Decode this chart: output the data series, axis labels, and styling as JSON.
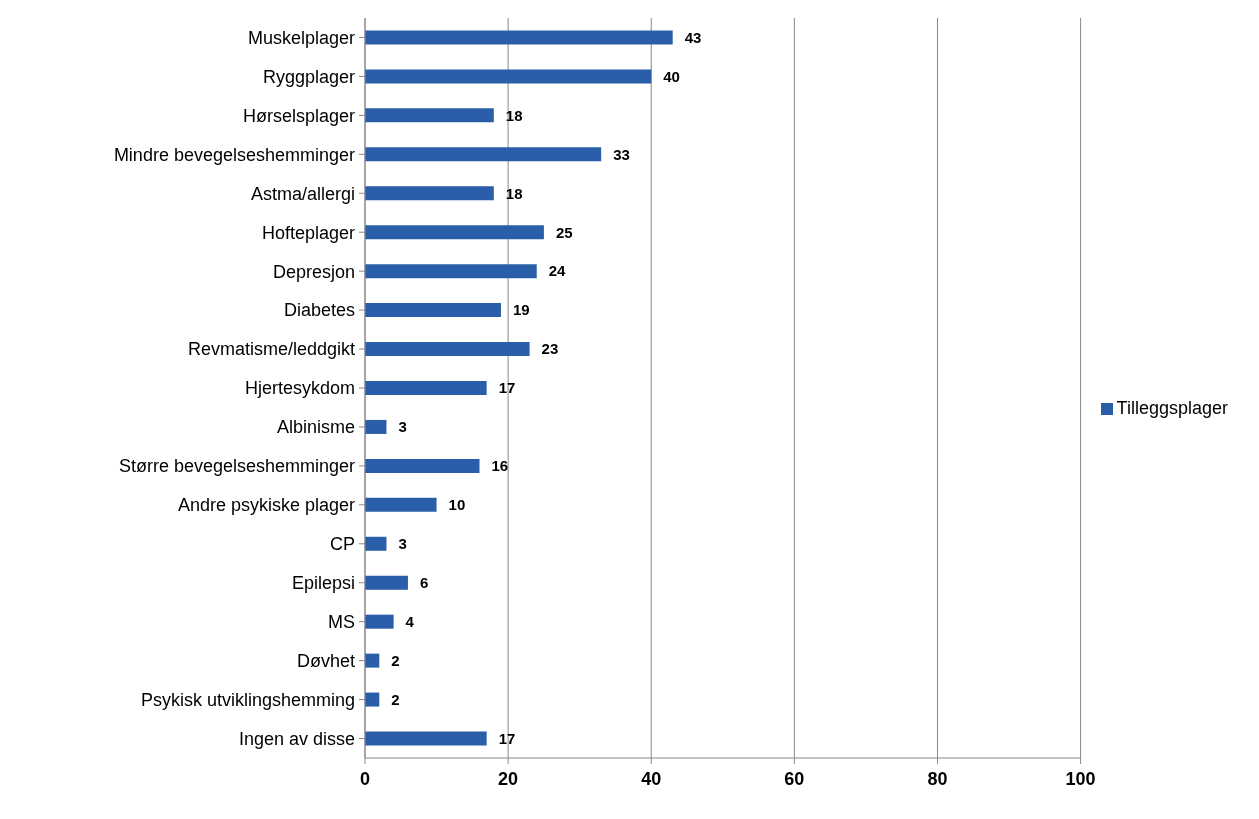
{
  "chart_data": {
    "type": "bar",
    "orientation": "horizontal",
    "categories": [
      "Muskelplager",
      "Ryggplager",
      "Hørselsplager",
      "Mindre bevegelseshemminger",
      "Astma/allergi",
      "Hofteplager",
      "Depresjon",
      "Diabetes",
      "Revmatisme/leddgikt",
      "Hjertesykdom",
      "Albinisme",
      "Større bevegelseshemminger",
      "Andre psykiske plager",
      "CP",
      "Epilepsi",
      "MS",
      "Døvhet",
      "Psykisk utviklingshemming",
      "Ingen av disse"
    ],
    "series": [
      {
        "name": "Tilleggsplager",
        "color": "#2b5ea8",
        "values": [
          43,
          40,
          18,
          33,
          18,
          25,
          24,
          19,
          23,
          17,
          3,
          16,
          10,
          3,
          6,
          4,
          2,
          2,
          17
        ]
      }
    ],
    "xlim": [
      0,
      100
    ],
    "xticks": [
      0,
      20,
      40,
      60,
      80,
      100
    ],
    "grid": "x",
    "legend": "right",
    "data_labels": true
  }
}
